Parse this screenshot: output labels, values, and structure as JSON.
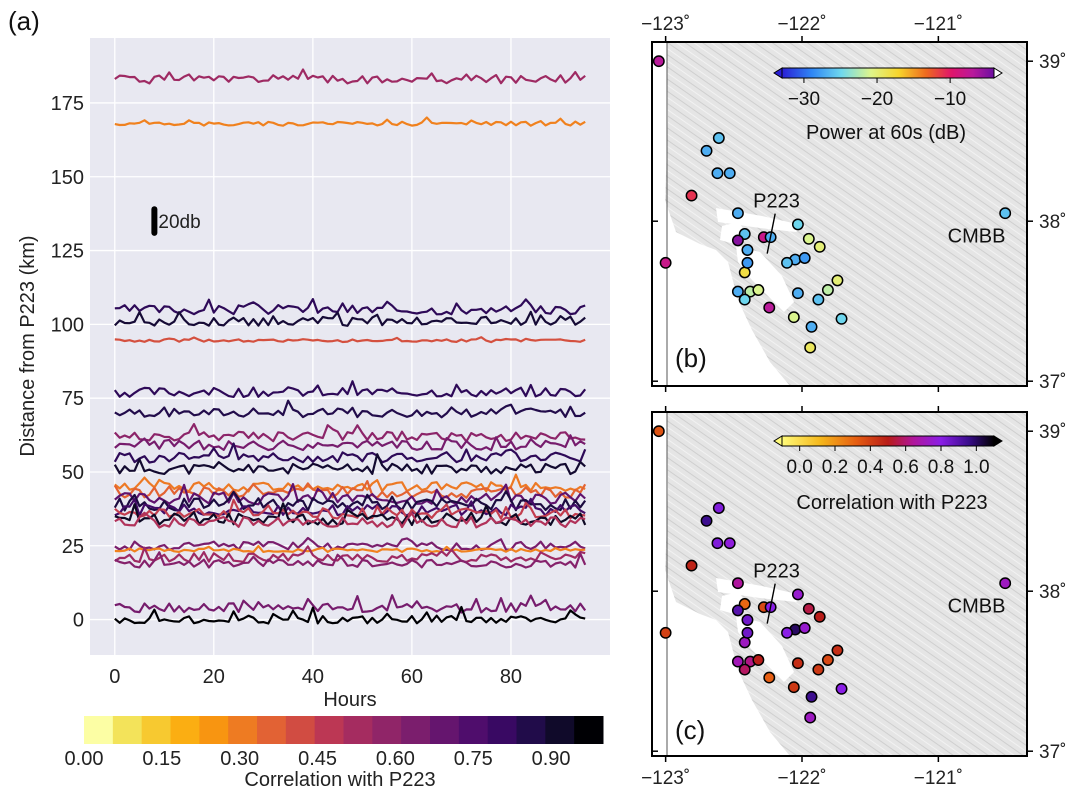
{
  "chart_data": [
    {
      "panel": "(a)",
      "type": "line",
      "xlabel": "Hours",
      "ylabel": "Distance from P223 (km)",
      "xlim": [
        -5,
        100
      ],
      "ylim": [
        -12,
        197
      ],
      "xticks": [
        0,
        20,
        40,
        60,
        80
      ],
      "yticks": [
        0,
        25,
        50,
        75,
        100,
        125,
        150,
        175
      ],
      "grid": true,
      "scale_bar": {
        "label": "20db",
        "x": 8,
        "y_from": 131,
        "y_to": 139
      },
      "colorbar": {
        "label": "Correlation with P223",
        "range": [
          0,
          1
        ],
        "ticks": [
          "0.00",
          "0.15",
          "0.30",
          "0.45",
          "0.60",
          "0.75",
          "0.90"
        ],
        "tick_values": [
          0,
          0.15,
          0.3,
          0.45,
          0.6,
          0.75,
          0.9
        ],
        "colors": [
          "#fcfea4",
          "#f3e35a",
          "#f7c930",
          "#fbae12",
          "#f89511",
          "#ee7b22",
          "#e26234",
          "#d14c42",
          "#bc3754",
          "#a52c60",
          "#902568",
          "#7b1e6d",
          "#65156e",
          "#4f0d6c",
          "#390963",
          "#210c4a",
          "#100a2a",
          "#000004"
        ]
      },
      "x": [
        0,
        95
      ],
      "series": [
        {
          "baseline": 183,
          "corr": 0.55,
          "amp": 1.4,
          "seed": 1
        },
        {
          "baseline": 168,
          "corr": 0.28,
          "amp": 0.7,
          "seed": 2
        },
        {
          "baseline": 105,
          "corr": 0.85,
          "amp": 1.6,
          "seed": 3
        },
        {
          "baseline": 101,
          "corr": 0.92,
          "amp": 1.5,
          "seed": 4
        },
        {
          "baseline": 94.5,
          "corr": 0.4,
          "amp": 0.5,
          "seed": 5
        },
        {
          "baseline": 77,
          "corr": 0.85,
          "amp": 1.6,
          "seed": 6
        },
        {
          "baseline": 70,
          "corr": 0.88,
          "amp": 1.5,
          "seed": 7
        },
        {
          "baseline": 62,
          "corr": 0.6,
          "amp": 1.7,
          "seed": 8
        },
        {
          "baseline": 59,
          "corr": 0.66,
          "amp": 1.6,
          "seed": 9
        },
        {
          "baseline": 55,
          "corr": 0.85,
          "amp": 1.8,
          "seed": 10
        },
        {
          "baseline": 51,
          "corr": 0.93,
          "amp": 1.8,
          "seed": 11
        },
        {
          "baseline": 45,
          "corr": 0.3,
          "amp": 1.6,
          "seed": 12
        },
        {
          "baseline": 43,
          "corr": 0.35,
          "amp": 1.8,
          "seed": 13
        },
        {
          "baseline": 41,
          "corr": 0.72,
          "amp": 2.0,
          "seed": 14
        },
        {
          "baseline": 39,
          "corr": 0.9,
          "amp": 2.1,
          "seed": 15
        },
        {
          "baseline": 37,
          "corr": 0.8,
          "amp": 2.0,
          "seed": 16
        },
        {
          "baseline": 36,
          "corr": 0.45,
          "amp": 1.8,
          "seed": 17
        },
        {
          "baseline": 34,
          "corr": 0.95,
          "amp": 2.0,
          "seed": 18
        },
        {
          "baseline": 33,
          "corr": 0.5,
          "amp": 1.8,
          "seed": 19
        },
        {
          "baseline": 25,
          "corr": 0.65,
          "amp": 1.4,
          "seed": 20
        },
        {
          "baseline": 23.5,
          "corr": 0.28,
          "amp": 0.6,
          "seed": 21
        },
        {
          "baseline": 21,
          "corr": 0.55,
          "amp": 1.5,
          "seed": 22
        },
        {
          "baseline": 19,
          "corr": 0.62,
          "amp": 1.4,
          "seed": 23
        },
        {
          "baseline": 4,
          "corr": 0.66,
          "amp": 1.6,
          "seed": 24
        },
        {
          "baseline": 0,
          "corr": 1.0,
          "amp": 1.4,
          "seed": 25
        }
      ]
    },
    {
      "panel": "(b)",
      "type": "scatter",
      "subtype": "map",
      "xlim": [
        -123.1,
        -120.35
      ],
      "ylim": [
        36.97,
        39.12
      ],
      "xticks": [
        "−123˚",
        "−122˚",
        "−121˚"
      ],
      "yticks": [
        "39˚",
        "38˚",
        "37˚"
      ],
      "xtick_values": [
        -123,
        -122,
        -121
      ],
      "ytick_values": [
        39,
        38,
        37
      ],
      "labels": [
        {
          "text": "P223",
          "lon": -122.27,
          "lat": 38.06
        },
        {
          "text": "CMBB",
          "lon": -120.72,
          "lat": 37.91
        }
      ],
      "colorbar": {
        "label": "Power at 60s (dB)",
        "ticks": [
          "−30",
          "−20",
          "−10"
        ],
        "tick_values": [
          -30,
          -20,
          -10
        ],
        "range": [
          -33,
          -4
        ]
      },
      "points": [
        {
          "lon": -123.05,
          "lat": 39.0,
          "value": -7
        },
        {
          "lon": -122.61,
          "lat": 38.52,
          "value": -26
        },
        {
          "lon": -122.7,
          "lat": 38.44,
          "value": -27
        },
        {
          "lon": -122.62,
          "lat": 38.3,
          "value": -27
        },
        {
          "lon": -122.53,
          "lat": 38.3,
          "value": -27
        },
        {
          "lon": -122.81,
          "lat": 38.16,
          "value": -11
        },
        {
          "lon": -122.47,
          "lat": 38.05,
          "value": -27
        },
        {
          "lon": -122.03,
          "lat": 37.98,
          "value": -25
        },
        {
          "lon": -122.42,
          "lat": 37.92,
          "value": -26
        },
        {
          "lon": -122.28,
          "lat": 37.9,
          "value": -8
        },
        {
          "lon": -122.23,
          "lat": 37.9,
          "value": -27
        },
        {
          "lon": -122.47,
          "lat": 37.88,
          "value": -5
        },
        {
          "lon": -121.95,
          "lat": 37.89,
          "value": -21
        },
        {
          "lon": -121.87,
          "lat": 37.84,
          "value": -20
        },
        {
          "lon": -122.4,
          "lat": 37.82,
          "value": -27
        },
        {
          "lon": -122.05,
          "lat": 37.76,
          "value": -27
        },
        {
          "lon": -122.11,
          "lat": 37.74,
          "value": -26
        },
        {
          "lon": -121.98,
          "lat": 37.77,
          "value": -28
        },
        {
          "lon": -122.42,
          "lat": 37.68,
          "value": -18
        },
        {
          "lon": -122.4,
          "lat": 37.74,
          "value": -28
        },
        {
          "lon": -123.0,
          "lat": 37.74,
          "value": -8
        },
        {
          "lon": -122.47,
          "lat": 37.56,
          "value": -27
        },
        {
          "lon": -122.38,
          "lat": 37.56,
          "value": -22
        },
        {
          "lon": -122.32,
          "lat": 37.57,
          "value": -21
        },
        {
          "lon": -122.42,
          "lat": 37.51,
          "value": -25
        },
        {
          "lon": -122.03,
          "lat": 37.55,
          "value": -27
        },
        {
          "lon": -121.88,
          "lat": 37.51,
          "value": -26
        },
        {
          "lon": -121.81,
          "lat": 37.57,
          "value": -22
        },
        {
          "lon": -121.74,
          "lat": 37.63,
          "value": -20
        },
        {
          "lon": -122.24,
          "lat": 37.46,
          "value": -7
        },
        {
          "lon": -121.71,
          "lat": 37.39,
          "value": -25
        },
        {
          "lon": -122.06,
          "lat": 37.4,
          "value": -21
        },
        {
          "lon": -121.93,
          "lat": 37.34,
          "value": -27
        },
        {
          "lon": -121.94,
          "lat": 37.21,
          "value": -19
        },
        {
          "lon": -120.51,
          "lat": 38.05,
          "value": -26
        }
      ]
    },
    {
      "panel": "(c)",
      "type": "scatter",
      "subtype": "map",
      "xlim": [
        -123.1,
        -120.35
      ],
      "ylim": [
        36.97,
        39.12
      ],
      "xticks": [
        "−123˚",
        "−122˚",
        "−121˚"
      ],
      "yticks": [
        "39˚",
        "38˚",
        "37˚"
      ],
      "xtick_values": [
        -123,
        -122,
        -121
      ],
      "ytick_values": [
        39,
        38,
        37
      ],
      "labels": [
        {
          "text": "P223",
          "lon": -122.27,
          "lat": 38.06
        },
        {
          "text": "CMBB",
          "lon": -120.72,
          "lat": 37.91
        }
      ],
      "colorbar": {
        "label": "Correlation with P223",
        "ticks": [
          "0.0",
          "0.2",
          "0.4",
          "0.6",
          "0.8",
          "1.0"
        ],
        "tick_values": [
          0,
          0.2,
          0.4,
          0.6,
          0.8,
          1.0
        ],
        "range": [
          -0.1,
          1.1
        ]
      },
      "points": [
        {
          "lon": -123.05,
          "lat": 39.0,
          "value": 0.35
        },
        {
          "lon": -122.61,
          "lat": 38.52,
          "value": 0.82
        },
        {
          "lon": -122.7,
          "lat": 38.44,
          "value": 0.95
        },
        {
          "lon": -122.62,
          "lat": 38.3,
          "value": 0.82
        },
        {
          "lon": -122.53,
          "lat": 38.3,
          "value": 0.78
        },
        {
          "lon": -122.81,
          "lat": 38.16,
          "value": 0.48
        },
        {
          "lon": -122.47,
          "lat": 38.05,
          "value": 0.65
        },
        {
          "lon": -122.03,
          "lat": 37.98,
          "value": 0.75
        },
        {
          "lon": -122.42,
          "lat": 37.92,
          "value": 0.3
        },
        {
          "lon": -122.28,
          "lat": 37.9,
          "value": 0.38
        },
        {
          "lon": -122.23,
          "lat": 37.9,
          "value": 0.8
        },
        {
          "lon": -122.47,
          "lat": 37.88,
          "value": 0.9
        },
        {
          "lon": -121.95,
          "lat": 37.89,
          "value": 0.55
        },
        {
          "lon": -121.87,
          "lat": 37.84,
          "value": 0.5
        },
        {
          "lon": -122.4,
          "lat": 37.82,
          "value": 0.85
        },
        {
          "lon": -122.05,
          "lat": 37.76,
          "value": 1.0
        },
        {
          "lon": -122.11,
          "lat": 37.74,
          "value": 0.8
        },
        {
          "lon": -121.98,
          "lat": 37.77,
          "value": 0.75
        },
        {
          "lon": -122.42,
          "lat": 37.68,
          "value": 0.72
        },
        {
          "lon": -122.4,
          "lat": 37.74,
          "value": 0.85
        },
        {
          "lon": -123.0,
          "lat": 37.74,
          "value": 0.4
        },
        {
          "lon": -122.47,
          "lat": 37.56,
          "value": 0.7
        },
        {
          "lon": -122.38,
          "lat": 37.56,
          "value": 0.62
        },
        {
          "lon": -122.32,
          "lat": 37.57,
          "value": 0.5
        },
        {
          "lon": -122.42,
          "lat": 37.51,
          "value": 0.58
        },
        {
          "lon": -122.03,
          "lat": 37.55,
          "value": 0.45
        },
        {
          "lon": -121.88,
          "lat": 37.51,
          "value": 0.42
        },
        {
          "lon": -121.81,
          "lat": 37.57,
          "value": 0.38
        },
        {
          "lon": -121.74,
          "lat": 37.63,
          "value": 0.45
        },
        {
          "lon": -122.24,
          "lat": 37.46,
          "value": 0.32
        },
        {
          "lon": -121.71,
          "lat": 37.39,
          "value": 0.8
        },
        {
          "lon": -122.06,
          "lat": 37.4,
          "value": 0.42
        },
        {
          "lon": -121.93,
          "lat": 37.34,
          "value": 0.95
        },
        {
          "lon": -121.94,
          "lat": 37.21,
          "value": 0.72
        },
        {
          "lon": -120.51,
          "lat": 38.05,
          "value": 0.72
        }
      ]
    }
  ]
}
